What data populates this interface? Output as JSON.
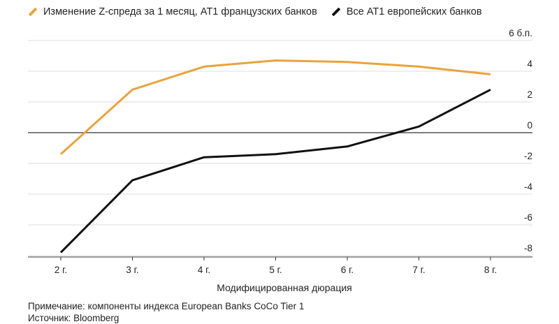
{
  "legend": {
    "french": {
      "label": "Изменение Z-спреда за 1 месяц, AT1 французских банков",
      "color": "#e8a33d"
    },
    "europe": {
      "label": "Все AT1 европейских банков",
      "color": "#111111"
    }
  },
  "notes": {
    "note": "Примечание: компоненты индекса European Banks CoCo Tier 1",
    "source": "Источник: Bloomberg"
  },
  "chart_data": {
    "type": "line",
    "title": "",
    "xlabel": "Модифицированная дюрация",
    "ylabel": "",
    "categories": [
      "2 г.",
      "3 г.",
      "4 г.",
      "5 г.",
      "6 г.",
      "7 г.",
      "8 г."
    ],
    "ylim": [
      -8,
      6
    ],
    "yticks": [
      {
        "value": 6,
        "label": "6 б.п."
      },
      {
        "value": 4,
        "label": "4"
      },
      {
        "value": 2,
        "label": "2"
      },
      {
        "value": 0,
        "label": "0"
      },
      {
        "value": -2,
        "label": "-2"
      },
      {
        "value": -4,
        "label": "-4"
      },
      {
        "value": -6,
        "label": "-6"
      },
      {
        "value": -8,
        "label": "-8"
      }
    ],
    "grid": true,
    "legend_position": "top-left",
    "series": [
      {
        "name": "Изменение Z-спреда за 1 месяц, AT1 французских банков",
        "color": "#e8a33d",
        "values": [
          -1.4,
          2.8,
          4.3,
          4.7,
          4.6,
          4.3,
          3.8
        ]
      },
      {
        "name": "Все AT1 европейских банков",
        "color": "#111111",
        "values": [
          -7.8,
          -3.1,
          -1.6,
          -1.4,
          -0.9,
          0.4,
          2.8
        ]
      }
    ]
  }
}
